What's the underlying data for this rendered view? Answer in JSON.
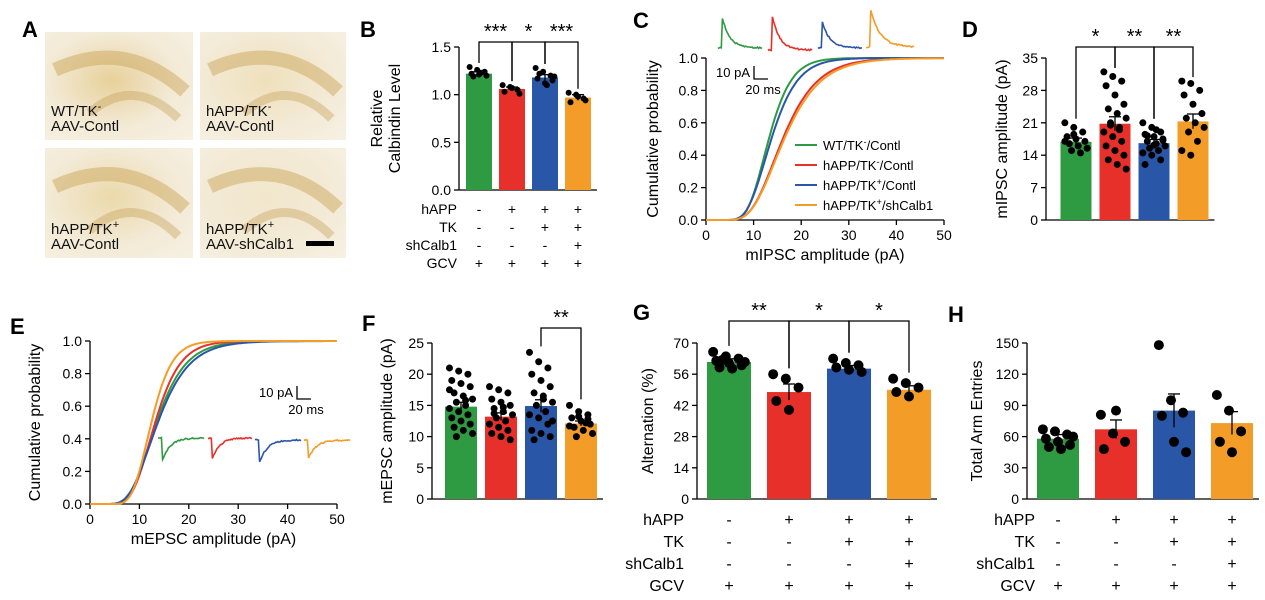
{
  "colors": {
    "green": "#2e9a42",
    "red": "#e8302a",
    "blue": "#2a56a8",
    "orange": "#f39c27"
  },
  "panelA": {
    "letter": "A",
    "images": [
      {
        "line1": "WT/TK",
        "sup": "-",
        "line2": "AAV-Contl",
        "tint": "#e7d09a"
      },
      {
        "line1": "hAPP/TK",
        "sup": "-",
        "line2": "AAV-Contl",
        "tint": "#efe0bb"
      },
      {
        "line1": "hAPP/TK",
        "sup": "+",
        "line2": "AAV-Contl",
        "tint": "#ebd9aa"
      },
      {
        "line1": "hAPP/TK",
        "sup": "+",
        "line2": "AAV-shCalb1",
        "tint": "#f2e7cc"
      }
    ]
  },
  "chart_data": [
    {
      "panel": "B",
      "letter": "B",
      "type": "bar",
      "ylabel": [
        "Relative",
        "Calbindin Level"
      ],
      "ylim": [
        0,
        1.5
      ],
      "yticks": [
        "0.0",
        "0.5",
        "1.0",
        "1.5"
      ],
      "values": [
        1.22,
        1.06,
        1.18,
        0.97
      ],
      "errors": [
        0.02,
        0.02,
        0.03,
        0.03
      ],
      "points": [
        [
          1.29,
          1.26,
          1.24,
          1.22,
          1.21,
          1.2,
          1.19,
          1.23
        ],
        [
          1.1,
          1.08,
          1.05,
          1.03,
          1.07,
          1.01
        ],
        [
          1.28,
          1.24,
          1.2,
          1.17,
          1.12,
          1.15,
          1.22,
          1.1,
          1.19
        ],
        [
          1.02,
          1.0,
          0.96,
          0.92,
          0.98,
          0.94
        ]
      ],
      "signif": [
        {
          "from": 0,
          "to": 1,
          "label": "***"
        },
        {
          "from": 1,
          "to": 2,
          "label": "*"
        },
        {
          "from": 2,
          "to": 3,
          "label": "***"
        }
      ],
      "rows": [
        {
          "name": "hAPP",
          "signs": [
            "-",
            "+",
            "+",
            "+"
          ]
        },
        {
          "name": "TK",
          "signs": [
            "-",
            "-",
            "+",
            "+"
          ]
        },
        {
          "name": "shCalb1",
          "signs": [
            "-",
            "-",
            "-",
            "+"
          ]
        },
        {
          "name": "GCV",
          "signs": [
            "+",
            "+",
            "+",
            "+"
          ]
        }
      ]
    },
    {
      "panel": "C",
      "letter": "C",
      "type": "line",
      "xlabel": "mIPSC amplitude (pA)",
      "ylabel": "Cumulative probability",
      "xlim": [
        0,
        50
      ],
      "ylim": [
        0,
        1
      ],
      "xticks": [
        "0",
        "10",
        "20",
        "30",
        "40",
        "50"
      ],
      "yticks": [
        "0.0",
        "0.2",
        "0.4",
        "0.6",
        "0.8",
        "1.0"
      ],
      "series": [
        {
          "name": "WT/TK",
          "sup": "-",
          "suffix": "/Contl",
          "color": "green",
          "mu": 2.58,
          "sigma": 0.28
        },
        {
          "name": "hAPP/TK",
          "sup": "-",
          "suffix": "/Contl",
          "color": "red",
          "mu": 2.78,
          "sigma": 0.35
        },
        {
          "name": "hAPP/TK",
          "sup": "+",
          "suffix": "/Contl",
          "color": "blue",
          "mu": 2.62,
          "sigma": 0.31
        },
        {
          "name": "hAPP/TK",
          "sup": "+",
          "suffix": "/shCalb1",
          "color": "orange",
          "mu": 2.8,
          "sigma": 0.36
        }
      ],
      "scale": {
        "y": "10 pA",
        "x": "20 ms"
      }
    },
    {
      "panel": "D",
      "letter": "D",
      "type": "bar",
      "ylabel": "mIPSC amplitude (pA)",
      "ylim": [
        0,
        35
      ],
      "yticks": [
        "0",
        "7",
        "14",
        "21",
        "28",
        "35"
      ],
      "values": [
        16.9,
        20.8,
        16.6,
        21.3
      ],
      "errors": [
        0.8,
        1.5,
        0.8,
        1.6
      ],
      "points": [
        [
          21,
          20,
          19,
          18,
          17.5,
          17,
          16.5,
          16,
          15.5,
          15,
          14.5,
          17,
          18.5
        ],
        [
          32,
          31,
          30,
          29,
          27,
          25,
          24,
          23,
          22,
          21,
          20,
          19,
          18,
          17,
          16,
          15,
          14,
          13,
          12,
          11,
          20.5,
          19.5
        ],
        [
          21,
          20,
          19,
          18.5,
          18,
          17.5,
          17,
          16.5,
          16,
          15.5,
          15,
          14.5,
          14,
          13,
          12,
          16.2,
          17.2,
          18.2,
          19.5
        ],
        [
          30,
          29.5,
          28,
          27,
          25,
          23,
          22,
          21,
          20,
          19,
          17,
          15,
          14
        ]
      ],
      "signif": [
        {
          "from": 0,
          "to": 1,
          "label": "*"
        },
        {
          "from": 1,
          "to": 2,
          "label": "**"
        },
        {
          "from": 2,
          "to": 3,
          "label": "**"
        }
      ]
    },
    {
      "panel": "E",
      "letter": "E",
      "type": "line",
      "xlabel": "mEPSC amplitude (pA)",
      "ylabel": "Cumulative probability",
      "xlim": [
        0,
        50
      ],
      "ylim": [
        0,
        1
      ],
      "xticks": [
        "0",
        "10",
        "20",
        "30",
        "40",
        "50"
      ],
      "yticks": [
        "0.0",
        "0.2",
        "0.4",
        "0.6",
        "0.8",
        "1.0"
      ],
      "series": [
        {
          "color": "green",
          "mu": 2.6,
          "sigma": 0.34
        },
        {
          "color": "red",
          "mu": 2.58,
          "sigma": 0.3
        },
        {
          "color": "blue",
          "mu": 2.62,
          "sigma": 0.36
        },
        {
          "color": "orange",
          "mu": 2.52,
          "sigma": 0.26
        }
      ],
      "scale": {
        "y": "10 pA",
        "x": "20 ms"
      }
    },
    {
      "panel": "F",
      "letter": "F",
      "type": "bar",
      "ylabel": "mEPSC amplitude (pA)",
      "ylim": [
        0,
        25
      ],
      "yticks": [
        "0",
        "5",
        "10",
        "15",
        "20",
        "25"
      ],
      "values": [
        14.8,
        13.2,
        14.9,
        12.1
      ],
      "errors": [
        0.7,
        0.6,
        1.0,
        0.4
      ],
      "points": [
        [
          21,
          20.5,
          20,
          19,
          18.5,
          18,
          17,
          16.5,
          16,
          15.5,
          15,
          14.5,
          14,
          13.5,
          13,
          12.5,
          12,
          11.5,
          11,
          10.5,
          10,
          15.8,
          17.5
        ],
        [
          18,
          17.5,
          17,
          16,
          15.5,
          15,
          14.5,
          14,
          13.5,
          13,
          12.5,
          12,
          11.5,
          11,
          10.5,
          10,
          9.5,
          13.7,
          14.7
        ],
        [
          23.5,
          22,
          21,
          20,
          19,
          18,
          17,
          16,
          15.5,
          15,
          14,
          13.5,
          13,
          12,
          11,
          10.5,
          10,
          9.5,
          16.5,
          12.5
        ],
        [
          15,
          14,
          13.5,
          13,
          12.5,
          12,
          11.5,
          11,
          10.5,
          10,
          12.2,
          11.7,
          13.2,
          12.8
        ]
      ],
      "signif": [
        {
          "from": 2,
          "to": 3,
          "label": "**"
        }
      ]
    },
    {
      "panel": "G",
      "letter": "G",
      "type": "bar",
      "ylabel": "Alternation (%)",
      "ylim": [
        0,
        70
      ],
      "yticks": [
        "0",
        "14",
        "28",
        "42",
        "56",
        "70"
      ],
      "values": [
        61.5,
        48.0,
        58.5,
        49.0
      ],
      "errors": [
        1.4,
        3.6,
        1.4,
        1.8
      ],
      "points": [
        [
          66,
          64,
          63,
          62,
          61,
          60,
          59,
          58.5,
          61.5,
          62.5
        ],
        [
          56,
          54,
          50,
          44,
          40
        ],
        [
          63,
          61,
          60,
          59,
          58,
          57
        ],
        [
          54,
          52,
          50,
          48,
          46
        ]
      ],
      "signif": [
        {
          "from": 0,
          "to": 1,
          "label": "**"
        },
        {
          "from": 1,
          "to": 2,
          "label": "*"
        },
        {
          "from": 2,
          "to": 3,
          "label": "*"
        }
      ],
      "rows": [
        {
          "name": "hAPP",
          "signs": [
            "-",
            "+",
            "+",
            "+"
          ]
        },
        {
          "name": "TK",
          "signs": [
            "-",
            "-",
            "+",
            "+"
          ]
        },
        {
          "name": "shCalb1",
          "signs": [
            "-",
            "-",
            "-",
            "+"
          ]
        },
        {
          "name": "GCV",
          "signs": [
            "+",
            "+",
            "+",
            "+"
          ]
        }
      ]
    },
    {
      "panel": "H",
      "letter": "H",
      "type": "bar",
      "ylabel": "Total Arm Entries",
      "ylim": [
        0,
        150
      ],
      "yticks": [
        "0",
        "30",
        "60",
        "90",
        "120",
        "150"
      ],
      "values": [
        58,
        67,
        85,
        73
      ],
      "errors": [
        4,
        9,
        16,
        11
      ],
      "points": [
        [
          67,
          65,
          62,
          58,
          55,
          52,
          50,
          48,
          60
        ],
        [
          81,
          63,
          55,
          48,
          85
        ],
        [
          148,
          95,
          83,
          80,
          55,
          45
        ],
        [
          100,
          85,
          65,
          55,
          45
        ]
      ],
      "signif": [],
      "rows": [
        {
          "name": "hAPP",
          "signs": [
            "-",
            "+",
            "+",
            "+"
          ]
        },
        {
          "name": "TK",
          "signs": [
            "-",
            "-",
            "+",
            "+"
          ]
        },
        {
          "name": "shCalb1",
          "signs": [
            "-",
            "-",
            "-",
            "+"
          ]
        },
        {
          "name": "GCV",
          "signs": [
            "+",
            "+",
            "+",
            "+"
          ]
        }
      ]
    }
  ]
}
